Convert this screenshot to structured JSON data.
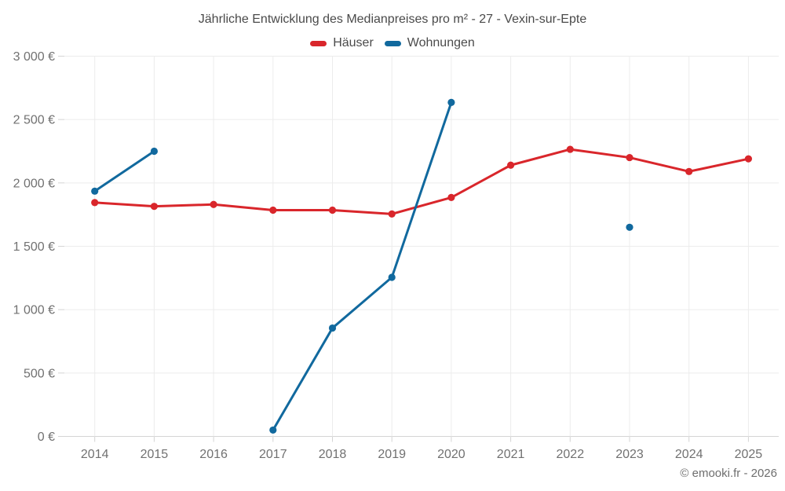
{
  "chart_data": {
    "type": "line",
    "title": "Jährliche Entwicklung des Medianpreises pro m² - 27 - Vexin-sur-Epte",
    "categories": [
      "2014",
      "2015",
      "2016",
      "2017",
      "2018",
      "2019",
      "2020",
      "2021",
      "2022",
      "2023",
      "2024",
      "2025"
    ],
    "series": [
      {
        "name": "Häuser",
        "color": "#d9262b",
        "values": [
          1845,
          1815,
          1830,
          1785,
          1785,
          1755,
          1885,
          2140,
          2265,
          2200,
          2090,
          2190
        ]
      },
      {
        "name": "Wohnungen",
        "color": "#11699e",
        "values": [
          1935,
          2250,
          null,
          50,
          855,
          1255,
          2635,
          null,
          null,
          1650,
          null,
          null
        ]
      }
    ],
    "xlabel": "",
    "ylabel": "",
    "ylim": [
      0,
      3000
    ],
    "y_tick_step": 500,
    "y_tick_labels": [
      "0 €",
      "500 €",
      "1 000 €",
      "1 500 €",
      "2 000 €",
      "2 500 €",
      "3 000 €"
    ],
    "grid": true,
    "legend_position": "top-center",
    "footer": "© emooki.fr - 2026"
  }
}
